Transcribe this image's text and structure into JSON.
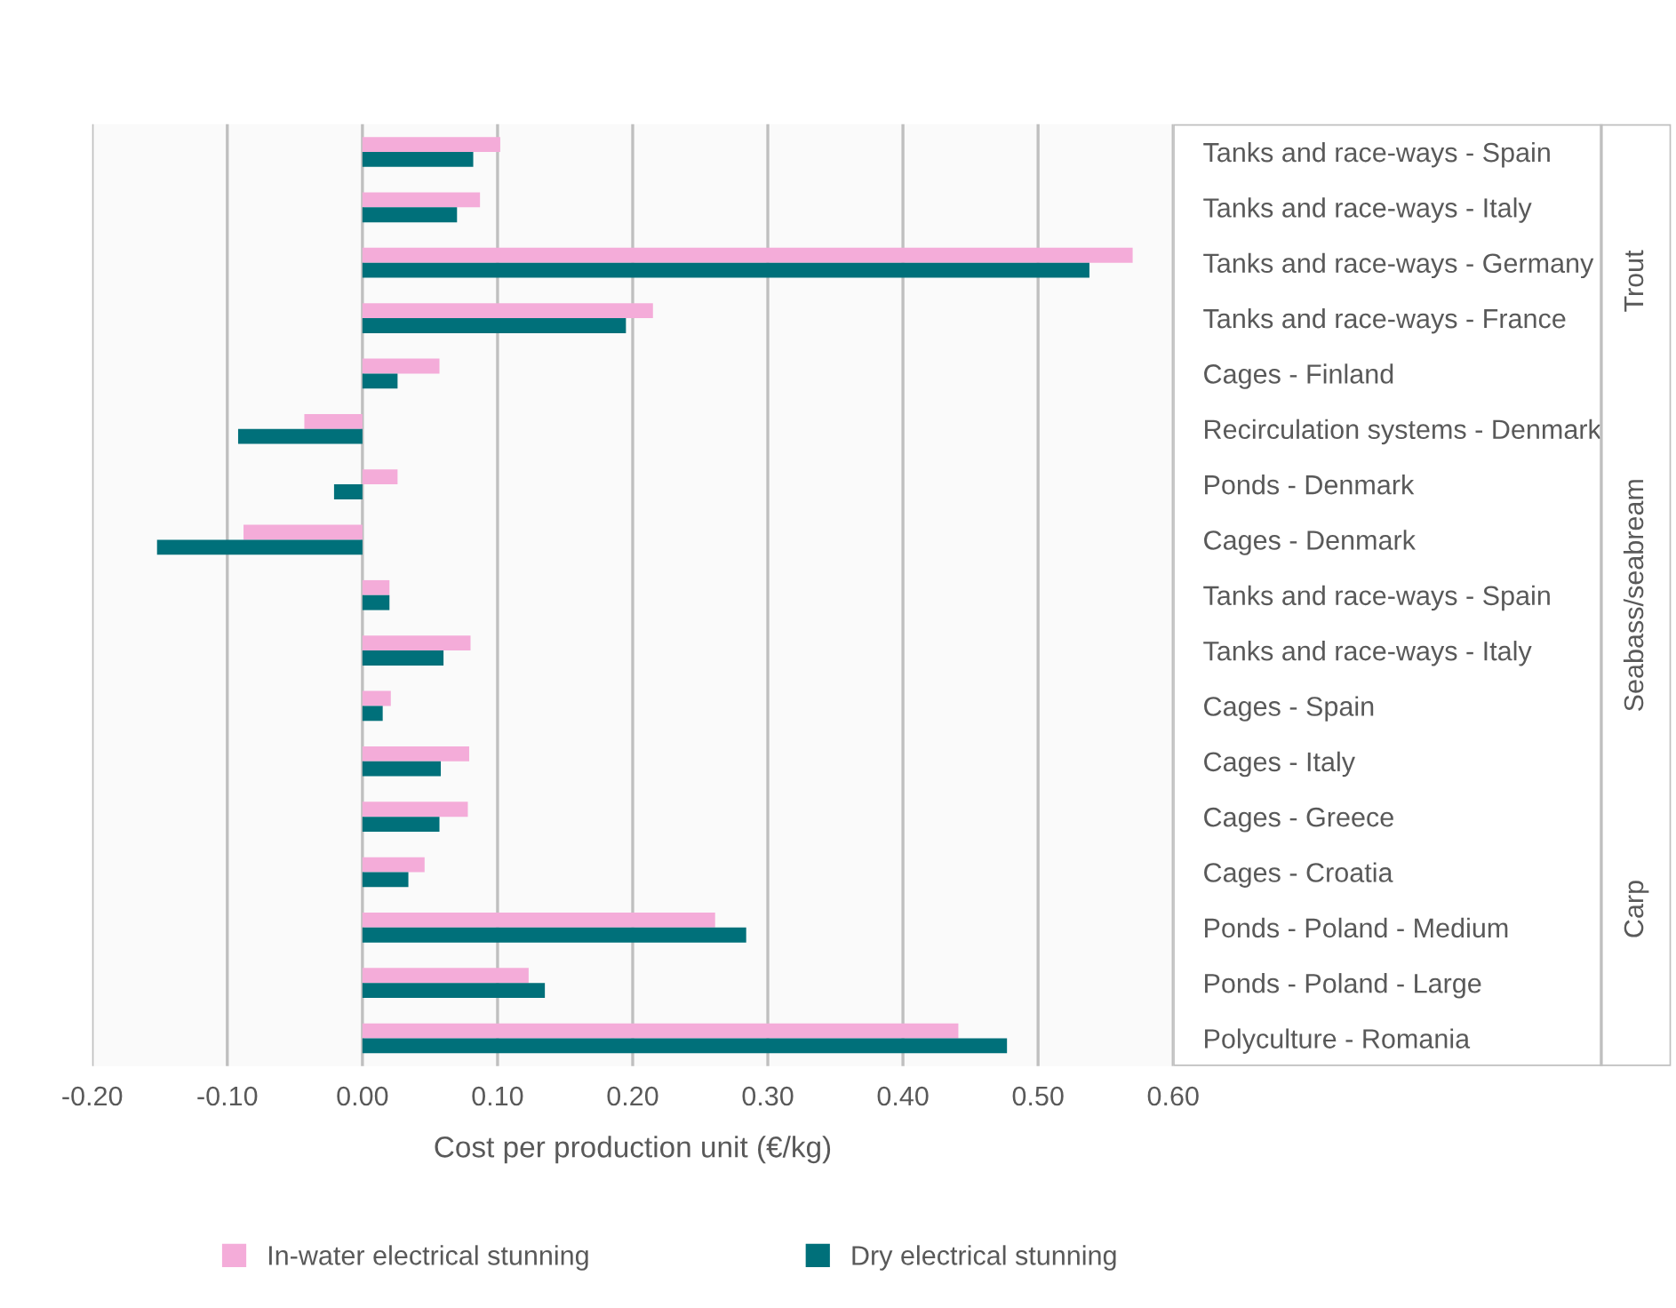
{
  "chart_data": {
    "type": "bar",
    "orientation": "horizontal",
    "xlabel": "Cost per production unit (€/kg)",
    "categories": [
      "Tanks and race-ways - Spain",
      "Tanks and race-ways - Italy",
      "Tanks and race-ways - Germany",
      "Tanks and race-ways - France",
      "Cages - Finland",
      "Recirculation systems - Denmark",
      "Ponds - Denmark",
      "Cages - Denmark",
      "Tanks and race-ways - Spain",
      "Tanks and race-ways - Italy",
      "Cages - Spain",
      "Cages - Italy",
      "Cages - Greece",
      "Cages - Croatia",
      "Ponds - Poland - Medium",
      "Ponds - Poland - Large",
      "Polyculture - Romania"
    ],
    "series": [
      {
        "name": "In-water electrical stunning",
        "color": "#f4acd9",
        "values": [
          0.102,
          0.087,
          0.57,
          0.215,
          0.057,
          -0.043,
          0.026,
          -0.088,
          0.02,
          0.08,
          0.021,
          0.079,
          0.078,
          0.046,
          0.261,
          0.123,
          0.441
        ]
      },
      {
        "name": "Dry electrical stunning",
        "color": "#00707a",
        "values": [
          0.082,
          0.07,
          0.538,
          0.195,
          0.026,
          -0.092,
          -0.021,
          -0.152,
          0.02,
          0.06,
          0.015,
          0.058,
          0.057,
          0.034,
          0.284,
          0.135,
          0.477
        ]
      }
    ],
    "xlim": [
      -0.2,
      0.6
    ],
    "xticks": [
      {
        "value": -0.2,
        "label": "-0.20"
      },
      {
        "value": -0.1,
        "label": "-0.10"
      },
      {
        "value": 0,
        "label": "0.00"
      },
      {
        "value": 0.1,
        "label": "0.10"
      },
      {
        "value": 0.2,
        "label": "0.20"
      },
      {
        "value": 0.3,
        "label": "0.30"
      },
      {
        "value": 0.4,
        "label": "0.40"
      },
      {
        "value": 0.5,
        "label": "0.50"
      },
      {
        "value": 0.6,
        "label": "0.60"
      }
    ],
    "annotations": [
      "Trout",
      "Seabass/seabream",
      "Carp"
    ],
    "grid": "x",
    "legend": "bottom"
  }
}
